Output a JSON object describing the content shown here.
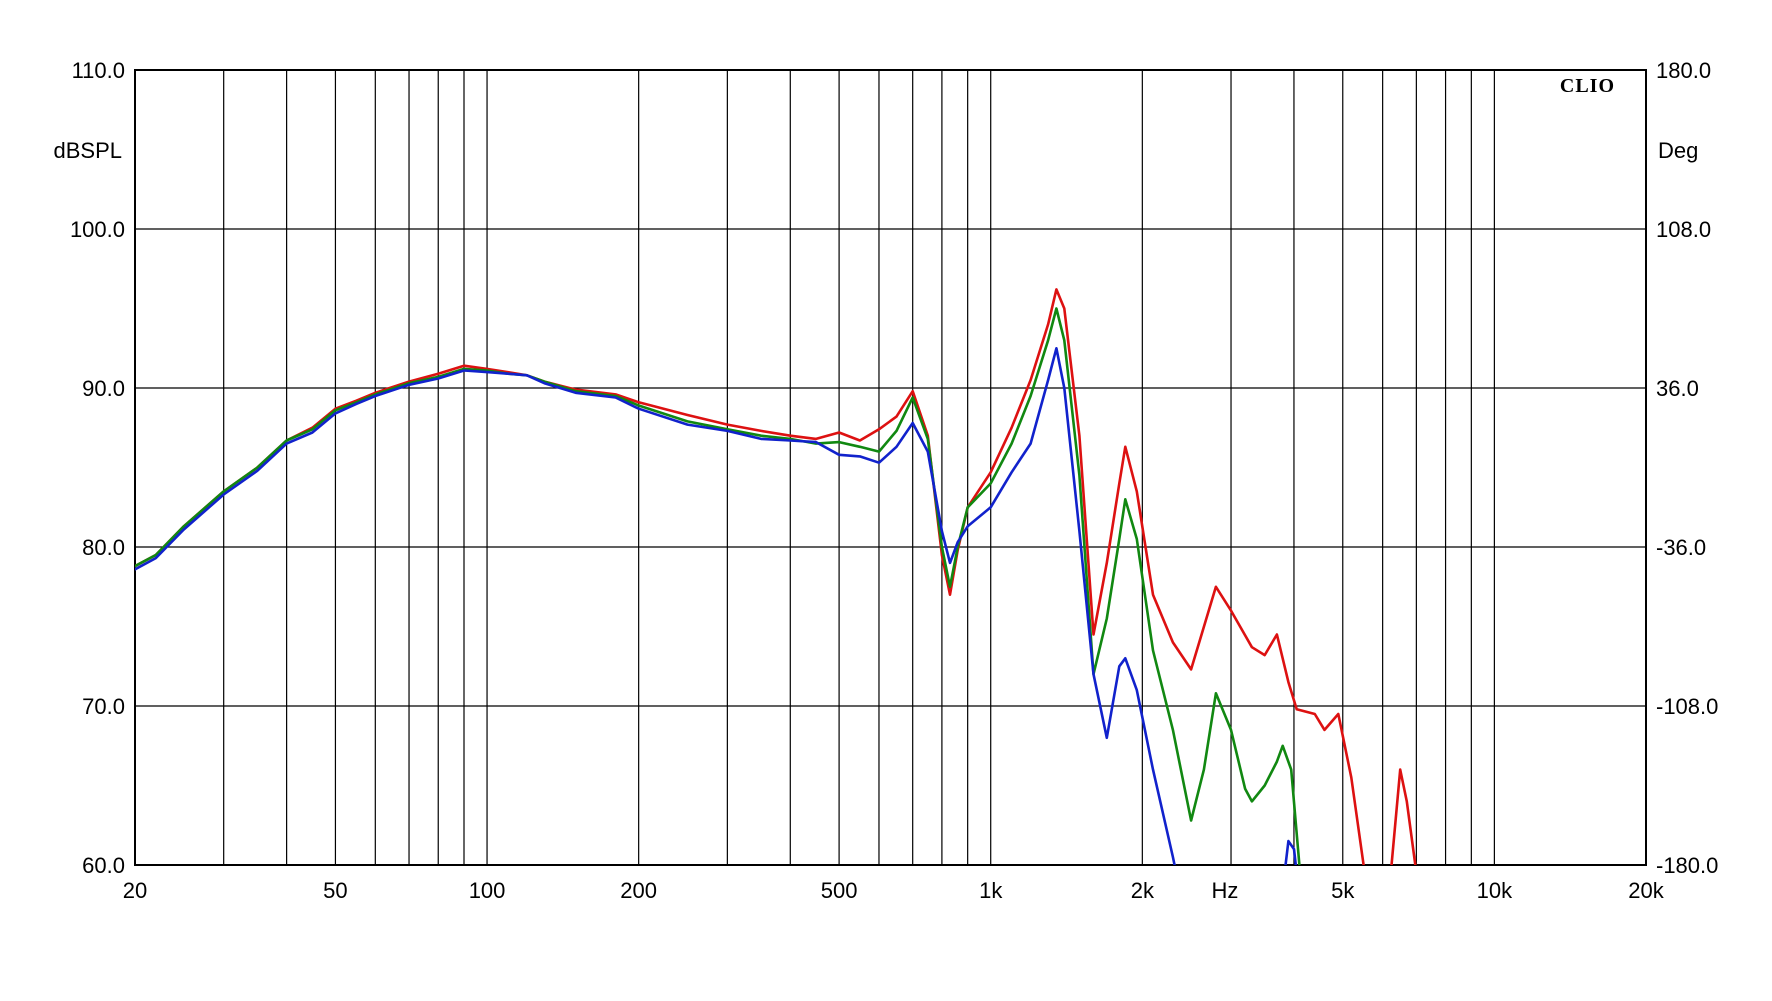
{
  "chart_data": {
    "type": "line",
    "brand": "CLIO",
    "x_scale": "log",
    "x_range": [
      20,
      20000
    ],
    "y_range": [
      60,
      110
    ],
    "y2_range": [
      -180,
      180
    ],
    "grid": true,
    "y_unit": "dBSPL",
    "y2_unit": "Deg",
    "x_unit": "Hz",
    "x_ticks": [
      {
        "value": 20,
        "label": "20"
      },
      {
        "value": 50,
        "label": "50"
      },
      {
        "value": 100,
        "label": "100"
      },
      {
        "value": 200,
        "label": "200"
      },
      {
        "value": 500,
        "label": "500"
      },
      {
        "value": 1000,
        "label": "1k"
      },
      {
        "value": 2000,
        "label": "2k"
      },
      {
        "value": 5000,
        "label": "5k"
      },
      {
        "value": 10000,
        "label": "10k"
      },
      {
        "value": 20000,
        "label": "20k"
      }
    ],
    "y_ticks": [
      "60.0",
      "70.0",
      "80.0",
      "90.0",
      "100.0",
      "110.0"
    ],
    "y2_ticks": [
      "-180.0",
      "-108.0",
      "-36.0",
      "36.0",
      "108.0",
      "180.0"
    ],
    "series": [
      {
        "color": "#dd1111",
        "points": [
          [
            20,
            78.8
          ],
          [
            22,
            79.5
          ],
          [
            25,
            81.3
          ],
          [
            30,
            83.5
          ],
          [
            35,
            85.0
          ],
          [
            40,
            86.7
          ],
          [
            45,
            87.5
          ],
          [
            50,
            88.7
          ],
          [
            55,
            89.2
          ],
          [
            60,
            89.7
          ],
          [
            70,
            90.4
          ],
          [
            80,
            90.9
          ],
          [
            90,
            91.4
          ],
          [
            100,
            91.2
          ],
          [
            110,
            91.0
          ],
          [
            120,
            90.8
          ],
          [
            130,
            90.4
          ],
          [
            150,
            89.9
          ],
          [
            180,
            89.6
          ],
          [
            200,
            89.1
          ],
          [
            250,
            88.3
          ],
          [
            300,
            87.7
          ],
          [
            350,
            87.3
          ],
          [
            400,
            87.0
          ],
          [
            450,
            86.8
          ],
          [
            500,
            87.2
          ],
          [
            550,
            86.7
          ],
          [
            600,
            87.4
          ],
          [
            650,
            88.2
          ],
          [
            700,
            89.8
          ],
          [
            750,
            87.0
          ],
          [
            800,
            79.5
          ],
          [
            830,
            77.0
          ],
          [
            860,
            79.8
          ],
          [
            900,
            82.5
          ],
          [
            1000,
            84.7
          ],
          [
            1100,
            87.5
          ],
          [
            1200,
            90.5
          ],
          [
            1300,
            94.0
          ],
          [
            1350,
            96.2
          ],
          [
            1400,
            95.0
          ],
          [
            1500,
            87.0
          ],
          [
            1600,
            74.5
          ],
          [
            1700,
            79.0
          ],
          [
            1800,
            84.0
          ],
          [
            1850,
            86.3
          ],
          [
            1950,
            83.5
          ],
          [
            2100,
            77.0
          ],
          [
            2300,
            74.0
          ],
          [
            2500,
            72.3
          ],
          [
            2800,
            77.5
          ],
          [
            3000,
            76.0
          ],
          [
            3300,
            73.7
          ],
          [
            3500,
            73.2
          ],
          [
            3700,
            74.5
          ],
          [
            3900,
            71.5
          ],
          [
            4050,
            69.8
          ],
          [
            4400,
            69.5
          ],
          [
            4600,
            68.5
          ],
          [
            4900,
            69.5
          ],
          [
            5200,
            65.5
          ],
          [
            5500,
            60.0
          ],
          [
            5700,
            55.5
          ],
          [
            6000,
            55.5
          ],
          [
            6200,
            58.8
          ],
          [
            6500,
            66.0
          ],
          [
            6700,
            64.0
          ],
          [
            7000,
            59.5
          ],
          [
            7200,
            55.0
          ]
        ]
      },
      {
        "color": "#118811",
        "points": [
          [
            20,
            78.8
          ],
          [
            22,
            79.5
          ],
          [
            25,
            81.3
          ],
          [
            30,
            83.5
          ],
          [
            35,
            85.0
          ],
          [
            40,
            86.7
          ],
          [
            45,
            87.4
          ],
          [
            50,
            88.6
          ],
          [
            55,
            89.1
          ],
          [
            60,
            89.6
          ],
          [
            70,
            90.3
          ],
          [
            80,
            90.7
          ],
          [
            90,
            91.2
          ],
          [
            100,
            91.1
          ],
          [
            110,
            90.9
          ],
          [
            120,
            90.8
          ],
          [
            130,
            90.4
          ],
          [
            150,
            89.8
          ],
          [
            180,
            89.5
          ],
          [
            200,
            88.9
          ],
          [
            250,
            87.9
          ],
          [
            300,
            87.4
          ],
          [
            350,
            87.0
          ],
          [
            400,
            86.8
          ],
          [
            450,
            86.5
          ],
          [
            500,
            86.6
          ],
          [
            550,
            86.3
          ],
          [
            600,
            86.0
          ],
          [
            650,
            87.3
          ],
          [
            700,
            89.4
          ],
          [
            750,
            86.8
          ],
          [
            800,
            80.0
          ],
          [
            830,
            77.5
          ],
          [
            860,
            80.0
          ],
          [
            900,
            82.5
          ],
          [
            1000,
            84.0
          ],
          [
            1100,
            86.5
          ],
          [
            1200,
            89.5
          ],
          [
            1300,
            93.0
          ],
          [
            1350,
            95.0
          ],
          [
            1400,
            93.0
          ],
          [
            1500,
            84.5
          ],
          [
            1600,
            72.0
          ],
          [
            1700,
            75.5
          ],
          [
            1800,
            80.5
          ],
          [
            1850,
            83.0
          ],
          [
            1950,
            80.5
          ],
          [
            2100,
            73.5
          ],
          [
            2300,
            68.5
          ],
          [
            2500,
            62.8
          ],
          [
            2650,
            66.0
          ],
          [
            2800,
            70.8
          ],
          [
            3000,
            68.5
          ],
          [
            3200,
            64.8
          ],
          [
            3300,
            64.0
          ],
          [
            3500,
            65.0
          ],
          [
            3700,
            66.5
          ],
          [
            3800,
            67.5
          ],
          [
            3950,
            66.0
          ],
          [
            4100,
            60.0
          ],
          [
            4300,
            55.5
          ]
        ]
      },
      {
        "color": "#1122cc",
        "points": [
          [
            20,
            78.6
          ],
          [
            22,
            79.3
          ],
          [
            25,
            81.1
          ],
          [
            30,
            83.3
          ],
          [
            35,
            84.8
          ],
          [
            40,
            86.5
          ],
          [
            45,
            87.2
          ],
          [
            50,
            88.4
          ],
          [
            55,
            89.0
          ],
          [
            60,
            89.5
          ],
          [
            70,
            90.2
          ],
          [
            80,
            90.6
          ],
          [
            90,
            91.1
          ],
          [
            100,
            91.0
          ],
          [
            110,
            90.9
          ],
          [
            120,
            90.8
          ],
          [
            130,
            90.3
          ],
          [
            150,
            89.7
          ],
          [
            180,
            89.4
          ],
          [
            200,
            88.7
          ],
          [
            250,
            87.7
          ],
          [
            300,
            87.3
          ],
          [
            350,
            86.8
          ],
          [
            400,
            86.7
          ],
          [
            450,
            86.6
          ],
          [
            500,
            85.8
          ],
          [
            550,
            85.7
          ],
          [
            600,
            85.3
          ],
          [
            650,
            86.3
          ],
          [
            700,
            87.8
          ],
          [
            750,
            86.0
          ],
          [
            800,
            81.0
          ],
          [
            830,
            79.0
          ],
          [
            860,
            80.3
          ],
          [
            900,
            81.3
          ],
          [
            1000,
            82.5
          ],
          [
            1100,
            84.7
          ],
          [
            1200,
            86.5
          ],
          [
            1300,
            90.5
          ],
          [
            1350,
            92.5
          ],
          [
            1400,
            90.0
          ],
          [
            1500,
            81.0
          ],
          [
            1600,
            72.0
          ],
          [
            1700,
            68.0
          ],
          [
            1800,
            72.5
          ],
          [
            1850,
            73.0
          ],
          [
            1950,
            71.0
          ],
          [
            2100,
            66.0
          ],
          [
            2300,
            60.5
          ],
          [
            2500,
            55.0
          ],
          [
            3700,
            55.0
          ],
          [
            3800,
            58.5
          ],
          [
            3900,
            61.5
          ],
          [
            4000,
            61.0
          ],
          [
            4100,
            58.0
          ],
          [
            4200,
            55.0
          ]
        ]
      }
    ]
  }
}
